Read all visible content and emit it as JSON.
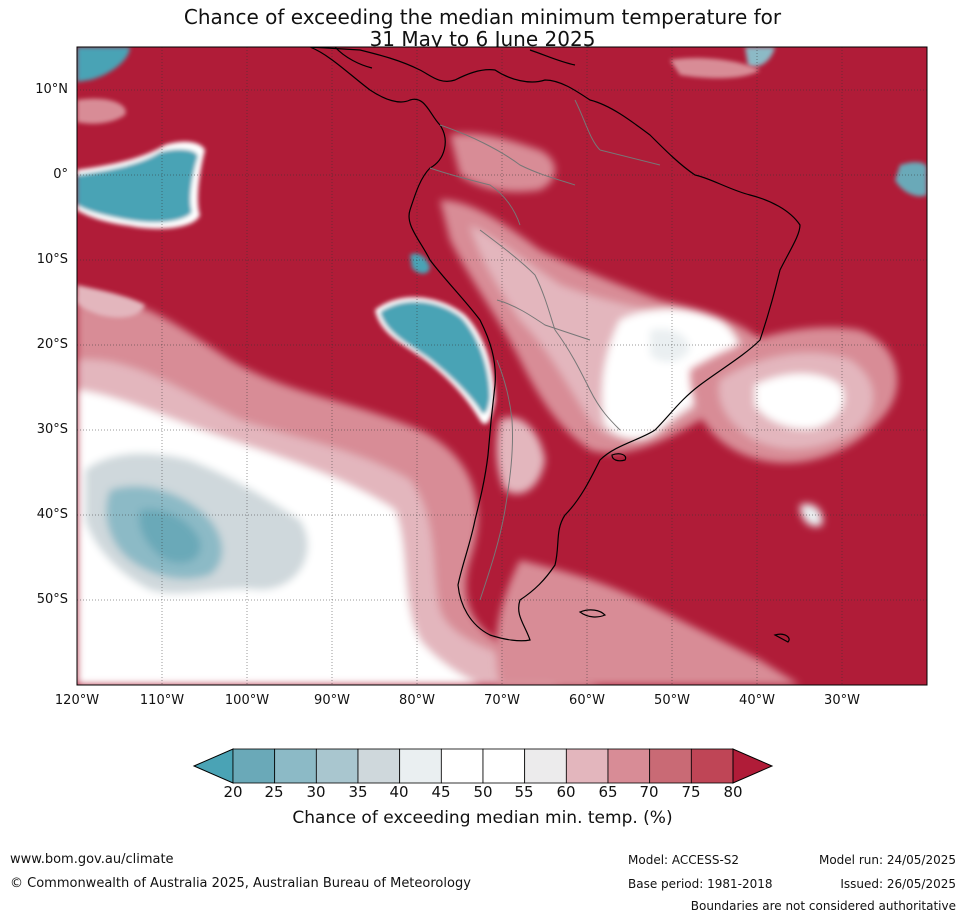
{
  "title": {
    "line1": "Chance of exceeding the median minimum temperature for",
    "line2": "31 May to 6 June 2025"
  },
  "axes": {
    "lat_labels": [
      "10°N",
      "0°",
      "10°S",
      "20°S",
      "30°S",
      "40°S",
      "50°S"
    ],
    "lon_labels": [
      "120°W",
      "110°W",
      "100°W",
      "90°W",
      "80°W",
      "70°W",
      "60°W",
      "50°W",
      "40°W",
      "30°W"
    ]
  },
  "colorbar": {
    "ticks": [
      "20",
      "25",
      "30",
      "35",
      "40",
      "45",
      "50",
      "55",
      "60",
      "65",
      "70",
      "75",
      "80"
    ],
    "colors": [
      "#4aa3b5",
      "#6aa9b8",
      "#8cbac6",
      "#a9c6cf",
      "#cfd8dc",
      "#eaeff1",
      "#ffffff",
      "#ffffff",
      "#ecebec",
      "#e3b6bd",
      "#d88c96",
      "#c96a75",
      "#bf4556",
      "#b01c38"
    ],
    "label": "Chance of exceeding median min. temp. (%)"
  },
  "footer": {
    "website": "www.bom.gov.au/climate",
    "copyright": "© Commonwealth of Australia 2025, Australian Bureau of Meteorology",
    "model": "Model: ACCESS-S2",
    "base_period": "Base period: 1981-2018",
    "model_run": "Model run: 24/05/2025",
    "issued": "Issued: 26/05/2025",
    "disclaimer": "Boundaries are not considered authoritative"
  }
}
